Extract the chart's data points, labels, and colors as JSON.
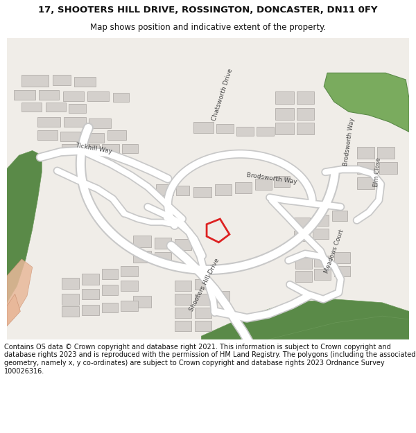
{
  "title_line1": "17, SHOOTERS HILL DRIVE, ROSSINGTON, DONCASTER, DN11 0FY",
  "title_line2": "Map shows position and indicative extent of the property.",
  "footer_text": "Contains OS data © Crown copyright and database right 2021. This information is subject to Crown copyright and database rights 2023 and is reproduced with the permission of HM Land Registry. The polygons (including the associated geometry, namely x, y co-ordinates) are subject to Crown copyright and database rights 2023 Ordnance Survey 100026316.",
  "title_fontsize": 9.5,
  "subtitle_fontsize": 8.5,
  "footer_fontsize": 7.0,
  "fig_width": 6.0,
  "fig_height": 6.25,
  "bg_color": "#f0ede8",
  "road_white": "#ffffff",
  "road_gray": "#c8c8c8",
  "building_fill": "#d4d0cc",
  "building_edge": "#a8a4a0",
  "green1": "#7aab5e",
  "green2": "#5a8a48",
  "green3": "#6a9858",
  "salmon": "#e8b89a",
  "red_plot": "#dd2222",
  "white": "#ffffff",
  "black": "#111111",
  "gray_text": "#444444"
}
